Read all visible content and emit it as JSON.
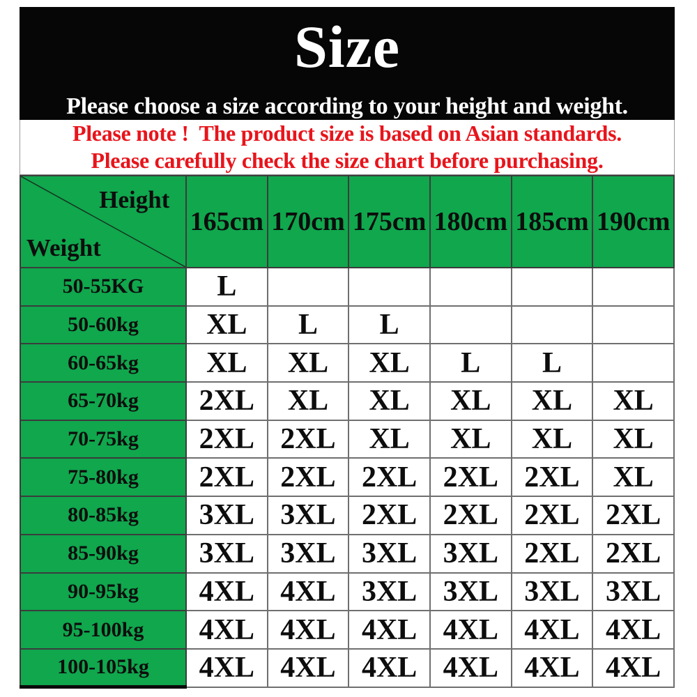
{
  "colors": {
    "green": "#10a74d",
    "red": "#e8141b",
    "grid": "#6f6f6f"
  },
  "header": {
    "title": "Size",
    "subtitle": "Please choose a size according to your height and weight."
  },
  "note": {
    "line1": "Please note !  The product size is based on Asian standards.",
    "line2": "Please carefully check the size chart before purchasing."
  },
  "chart_data": {
    "type": "table",
    "corner_top": "Height",
    "corner_bottom": "Weight",
    "columns": [
      "165cm",
      "170cm",
      "175cm",
      "180cm",
      "185cm",
      "190cm"
    ],
    "rows": [
      {
        "weight": "50-55KG",
        "sizes": [
          "L",
          "",
          "",
          "",
          "",
          ""
        ]
      },
      {
        "weight": "50-60kg",
        "sizes": [
          "XL",
          "L",
          "L",
          "",
          "",
          ""
        ]
      },
      {
        "weight": "60-65kg",
        "sizes": [
          "XL",
          "XL",
          "XL",
          "L",
          "L",
          ""
        ]
      },
      {
        "weight": "65-70kg",
        "sizes": [
          "2XL",
          "XL",
          "XL",
          "XL",
          "XL",
          "XL"
        ]
      },
      {
        "weight": "70-75kg",
        "sizes": [
          "2XL",
          "2XL",
          "XL",
          "XL",
          "XL",
          "XL"
        ]
      },
      {
        "weight": "75-80kg",
        "sizes": [
          "2XL",
          "2XL",
          "2XL",
          "2XL",
          "2XL",
          "XL"
        ]
      },
      {
        "weight": "80-85kg",
        "sizes": [
          "3XL",
          "3XL",
          "2XL",
          "2XL",
          "2XL",
          "2XL"
        ]
      },
      {
        "weight": "85-90kg",
        "sizes": [
          "3XL",
          "3XL",
          "3XL",
          "3XL",
          "2XL",
          "2XL"
        ]
      },
      {
        "weight": "90-95kg",
        "sizes": [
          "4XL",
          "4XL",
          "3XL",
          "3XL",
          "3XL",
          "3XL"
        ]
      },
      {
        "weight": "95-100kg",
        "sizes": [
          "4XL",
          "4XL",
          "4XL",
          "4XL",
          "4XL",
          "4XL"
        ]
      },
      {
        "weight": "100-105kg",
        "sizes": [
          "4XL",
          "4XL",
          "4XL",
          "4XL",
          "4XL",
          "4XL"
        ]
      }
    ]
  }
}
